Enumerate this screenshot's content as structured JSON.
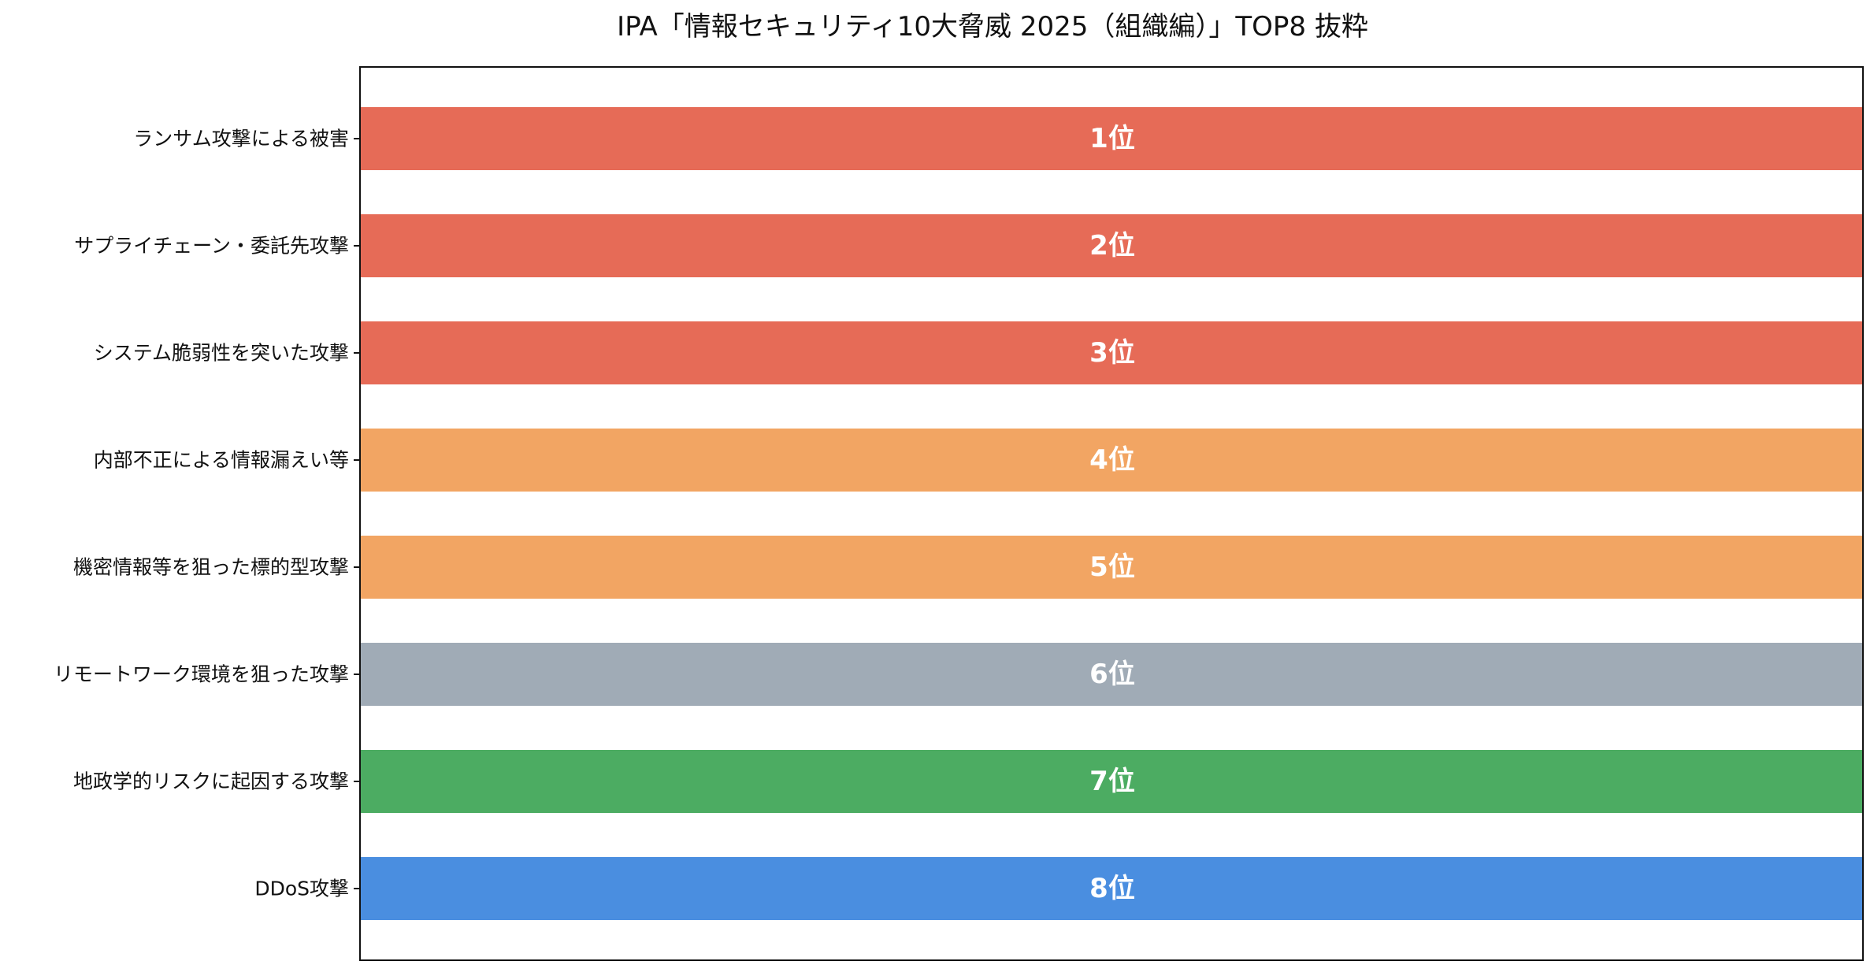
{
  "chart_data": {
    "type": "bar",
    "orientation": "horizontal",
    "title": "IPA「情報セキュリティ10大脅威 2025（組織編）」TOP8 抜粋",
    "xlabel": "",
    "ylabel": "",
    "grid": false,
    "xlim": [
      0,
      1
    ],
    "categories": [
      "ランサム攻撃による被害",
      "サプライチェーン・委託先攻撃",
      "システム脆弱性を突いた攻撃",
      "内部不正による情報漏えい等",
      "機密情報等を狙った標的型攻撃",
      "リモートワーク環境を狙った攻撃",
      "地政学的リスクに起因する攻撃",
      "DDoS攻撃"
    ],
    "values": [
      1,
      1,
      1,
      1,
      1,
      1,
      1,
      1
    ],
    "bar_labels": [
      "1位",
      "2位",
      "3位",
      "4位",
      "5位",
      "6位",
      "7位",
      "8位"
    ],
    "colors": [
      "#e66b57",
      "#e66b57",
      "#e66b57",
      "#f2a563",
      "#f2a563",
      "#a0abb6",
      "#4cac62",
      "#4a8ee0"
    ]
  }
}
